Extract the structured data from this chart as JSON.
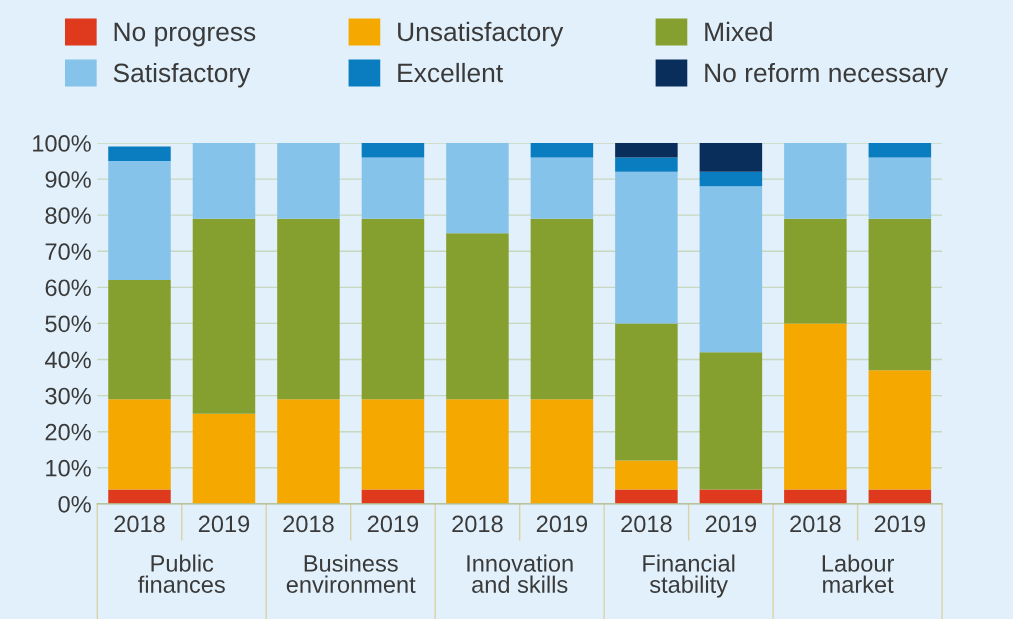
{
  "chart_data": {
    "type": "bar",
    "stacked": true,
    "categories": [
      "2018",
      "2019",
      "2018",
      "2019",
      "2018",
      "2019",
      "2018",
      "2019",
      "2018",
      "2019"
    ],
    "annotations": [
      "Public\nfinances",
      "Business\nenvironment",
      "Innovation\nand skills",
      "Financial\nstability",
      "Labour\nmarket"
    ],
    "series": [
      {
        "name": "No progress",
        "color": "#e03a1e",
        "values": [
          4,
          null,
          null,
          4,
          null,
          null,
          4,
          4,
          4,
          4
        ]
      },
      {
        "name": "Unsatisfactory",
        "color": "#f5a800",
        "values": [
          25,
          25,
          29,
          25,
          29,
          29,
          8,
          null,
          46,
          33
        ]
      },
      {
        "name": "Mixed",
        "color": "#85a02e",
        "values": [
          33,
          54,
          50,
          50,
          46,
          50,
          38,
          38,
          29,
          42
        ]
      },
      {
        "name": "Satisfactory",
        "color": "#86c3ea",
        "values": [
          33,
          21,
          21,
          17,
          25,
          17,
          42,
          46,
          21,
          17
        ]
      },
      {
        "name": "Excellent",
        "color": "#0a7dc0",
        "values": [
          4,
          null,
          null,
          4,
          null,
          4,
          4,
          4,
          null,
          4
        ]
      },
      {
        "name": "No reform necessary",
        "color": "#0a2e5c",
        "values": [
          null,
          null,
          null,
          null,
          null,
          null,
          4,
          8,
          null,
          null
        ]
      }
    ],
    "ylim": [
      0,
      100
    ],
    "yticks": [
      {
        "value": 0,
        "label": "0%"
      },
      {
        "value": 10,
        "label": "10%"
      },
      {
        "value": 20,
        "label": "20%"
      },
      {
        "value": 30,
        "label": "30%"
      },
      {
        "value": 40,
        "label": "40%"
      },
      {
        "value": 50,
        "label": "50%"
      },
      {
        "value": 60,
        "label": "60%"
      },
      {
        "value": 70,
        "label": "70%"
      },
      {
        "value": 80,
        "label": "80%"
      },
      {
        "value": 90,
        "label": "90%"
      },
      {
        "value": 100,
        "label": "100%"
      }
    ],
    "grid": "y",
    "legend": "top"
  }
}
